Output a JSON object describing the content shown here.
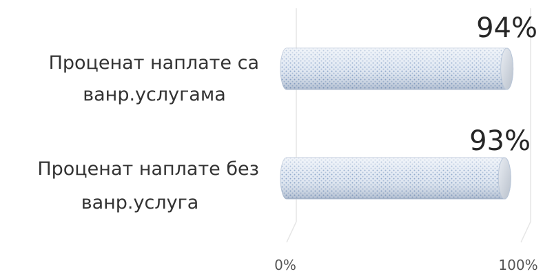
{
  "chart_data": {
    "type": "bar",
    "orientation": "horizontal",
    "categories": [
      "Проценат наплате са ванр.услугама",
      "Проценат наплате без ванр.услуга"
    ],
    "category_lines": [
      [
        "Проценат наплате са",
        "ванр.услугама"
      ],
      [
        "Проценат наплате без",
        "ванр.услуга"
      ]
    ],
    "values": [
      94,
      93
    ],
    "value_labels": [
      "94%",
      "93%"
    ],
    "xlim": [
      0,
      100
    ],
    "ticks": [
      "0%",
      "100%"
    ],
    "grid": true,
    "legend": "none",
    "colors": {
      "bar_fill": "#dfe7f2",
      "bar_pattern": "#7f9cc4",
      "bar_stroke": "#b9c6d8",
      "cap_fill": "#cdd3dc",
      "grid": "#e6e6e6"
    }
  }
}
